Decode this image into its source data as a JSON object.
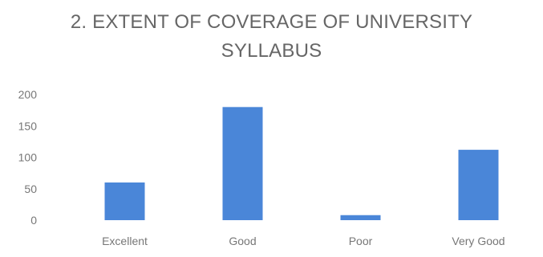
{
  "chart_data": {
    "type": "bar",
    "title_lines": [
      "2. EXTENT OF COVERAGE OF UNIVERSITY",
      "SYLLABUS"
    ],
    "categories": [
      "Excellent",
      "Good",
      "Poor",
      "Very Good"
    ],
    "values": [
      60,
      180,
      8,
      112
    ],
    "xlabel": "",
    "ylabel": "",
    "ylim": [
      0,
      200
    ],
    "yticks": [
      0,
      50,
      100,
      150,
      200
    ],
    "grid": false,
    "legend": "none",
    "bar_color": "#4a86d8"
  }
}
